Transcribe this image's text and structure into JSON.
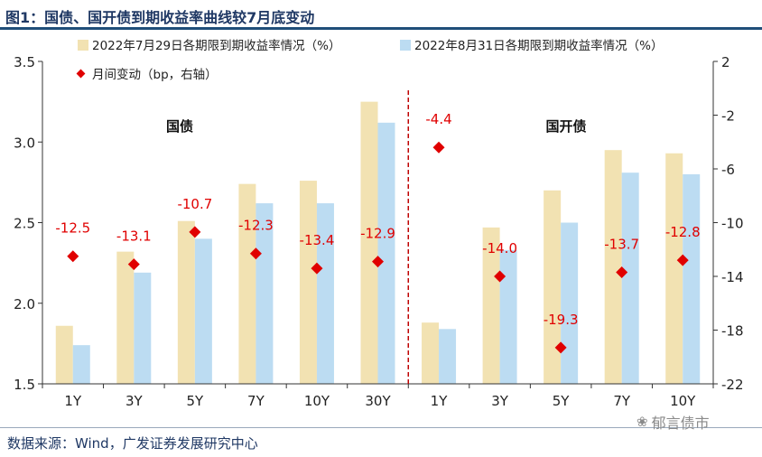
{
  "title": "图1：国债、国开债到期收益率曲线较7月底变动",
  "source": "数据来源：Wind，广发证券发展研究中心",
  "watermark": "郁言债市",
  "colors": {
    "series1": "#f2e2b2",
    "series2": "#bcdcf2",
    "change": "#e00000",
    "title": "#1f3864",
    "divider": "#c00000"
  },
  "chart_data": {
    "type": "bar",
    "categories": [
      "1Y",
      "3Y",
      "5Y",
      "7Y",
      "10Y",
      "30Y",
      "1Y",
      "3Y",
      "5Y",
      "7Y",
      "10Y"
    ],
    "groups": [
      {
        "label": "国债",
        "categories": [
          "1Y",
          "3Y",
          "5Y",
          "7Y",
          "10Y",
          "30Y"
        ]
      },
      {
        "label": "国开债",
        "categories": [
          "1Y",
          "3Y",
          "5Y",
          "7Y",
          "10Y"
        ]
      }
    ],
    "series": [
      {
        "name": "2022年7月29日各期限到期收益率情况（%）",
        "axis": "left",
        "type": "bar",
        "values": [
          1.86,
          2.32,
          2.51,
          2.74,
          2.76,
          3.25,
          1.88,
          2.47,
          2.7,
          2.95,
          2.93
        ]
      },
      {
        "name": "2022年8月31日各期限到期收益率情况（%）",
        "axis": "left",
        "type": "bar",
        "values": [
          1.74,
          2.19,
          2.4,
          2.62,
          2.62,
          3.12,
          1.84,
          2.33,
          2.5,
          2.81,
          2.8
        ]
      },
      {
        "name": "月间变动（bp，右轴）",
        "axis": "right",
        "type": "scatter",
        "values": [
          -12.5,
          -13.1,
          -10.7,
          -12.3,
          -13.4,
          -12.9,
          -4.4,
          -14.0,
          -19.3,
          -13.7,
          -12.8
        ],
        "labels": [
          "-12.5",
          "-13.1",
          "-10.7",
          "-12.3",
          "-13.4",
          "-12.9",
          "-4.4",
          "-14.0",
          "-19.3",
          "-13.7",
          "-12.8"
        ]
      }
    ],
    "y_left": {
      "min": 1.5,
      "max": 3.5,
      "ticks": [
        "1.5",
        "2.0",
        "2.5",
        "3.0",
        "3.5"
      ]
    },
    "y_right": {
      "min": -22,
      "max": 2,
      "ticks": [
        "2",
        "-2",
        "-6",
        "-10",
        "-14",
        "-18",
        "-22"
      ]
    },
    "legend_position": "top",
    "grid": false
  }
}
